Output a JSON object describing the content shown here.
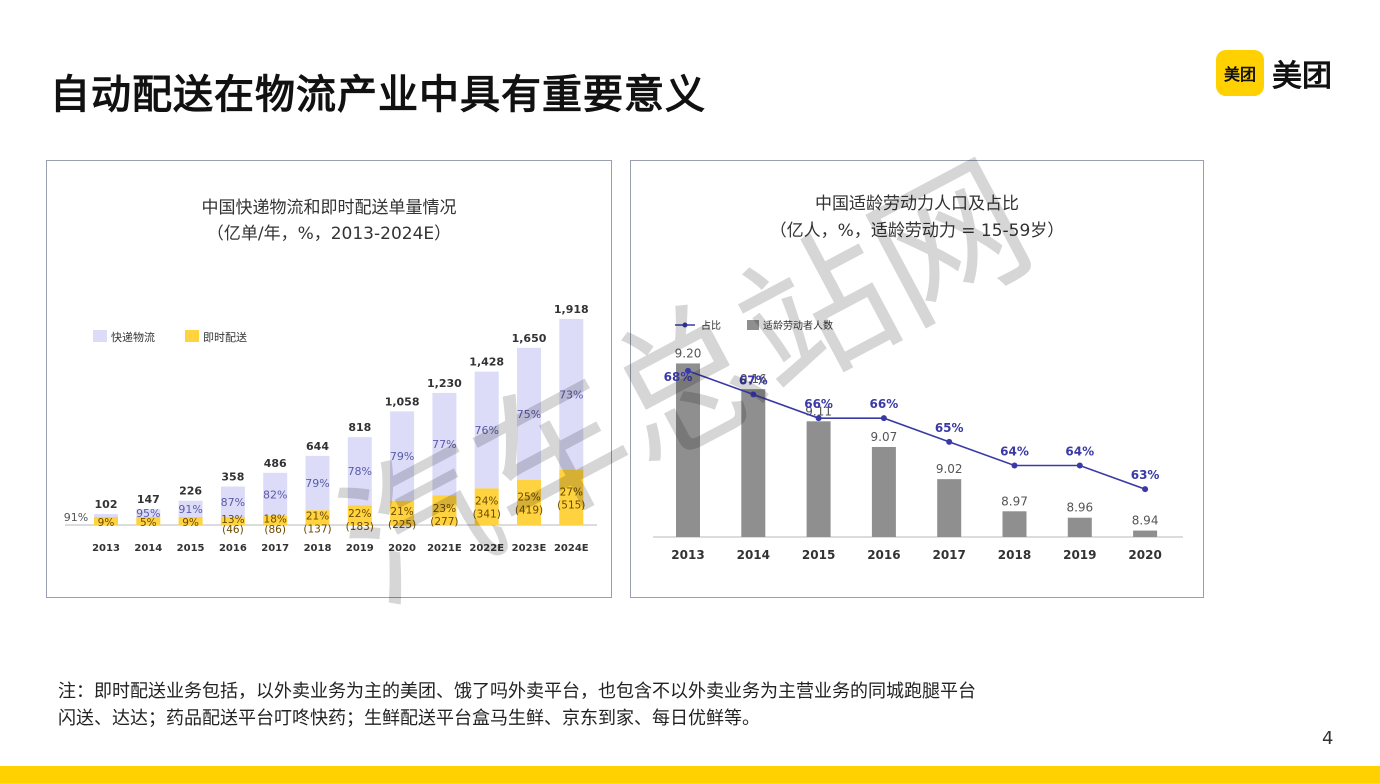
{
  "slide": {
    "title": "自动配送在物流产业中具有重要意义",
    "logo_badge": "美团",
    "logo_text": "美团",
    "note_line1": "注：即时配送业务包括，以外卖业务为主的美团、饿了吗外卖平台，也包含不以外卖业务为主营业务的同城跑腿平台",
    "note_line2": "闪送、达达；药品配送平台叮咚快药；生鲜配送平台盒马生鲜、京东到家、每日优鲜等。",
    "page_number": "4",
    "watermark_text": "汽车总站网"
  },
  "colors": {
    "accent": "#ffd100",
    "express": "#dcdcf8",
    "instant": "#ffd23f",
    "labor_bar": "#8f8f8f",
    "share_line": "#3a3aa6"
  },
  "chart_data": [
    {
      "type": "bar",
      "title": "中国快递物流和即时配送单量情况",
      "subtitle": "（亿单/年，%，2013-2024E）",
      "legend_position": "top-left",
      "categories": [
        "2013",
        "2014",
        "2015",
        "2016",
        "2017",
        "2018",
        "2019",
        "2020",
        "2021E",
        "2022E",
        "2023E",
        "2024E"
      ],
      "totals": [
        "102",
        "147",
        "226",
        "358",
        "486",
        "644",
        "818",
        "1,058",
        "1,230",
        "1,428",
        "1,650",
        "1,918"
      ],
      "total_values": [
        102,
        147,
        226,
        358,
        486,
        644,
        818,
        1058,
        1230,
        1428,
        1650,
        1918
      ],
      "series": [
        {
          "name": "快递物流",
          "share_labels": [
            "91%",
            "95%",
            "91%",
            "87%",
            "82%",
            "79%",
            "78%",
            "79%",
            "77%",
            "76%",
            "75%",
            "73%"
          ]
        },
        {
          "name": "即时配送",
          "share_labels": [
            "9%",
            "5%",
            "9%",
            "13%",
            "18%",
            "21%",
            "22%",
            "21%",
            "23%",
            "24%",
            "25%",
            "27%"
          ],
          "volume_labels": [
            "",
            "",
            "",
            "(46)",
            "(86)",
            "(137)",
            "(183)",
            "(225)",
            "(277)",
            "(341)",
            "(419)",
            "(515)"
          ],
          "values": [
            9,
            7,
            20,
            46,
            86,
            137,
            183,
            225,
            277,
            341,
            419,
            515
          ]
        }
      ]
    },
    {
      "type": "bar+line",
      "title": "中国适龄劳动力人口及占比",
      "subtitle": "（亿人，%，适龄劳动力 = 15-59岁）",
      "legend_position": "top-left",
      "categories": [
        "2013",
        "2014",
        "2015",
        "2016",
        "2017",
        "2018",
        "2019",
        "2020"
      ],
      "series": [
        {
          "name": "适龄劳动者人数",
          "values": [
            9.2,
            9.16,
            9.11,
            9.07,
            9.02,
            8.97,
            8.96,
            8.94
          ],
          "labels": [
            "9.20",
            "9.16",
            "9.11",
            "9.07",
            "9.02",
            "8.97",
            "8.96",
            "8.94"
          ]
        },
        {
          "name": "占比",
          "values": [
            68,
            67,
            66,
            66,
            65,
            64,
            64,
            63
          ],
          "labels": [
            "68%",
            "67%",
            "66%",
            "66%",
            "65%",
            "64%",
            "64%",
            "63%"
          ]
        }
      ],
      "bar_axis_range": [
        8.93,
        9.21
      ],
      "line_axis_range": [
        62.5,
        68.5
      ]
    }
  ]
}
